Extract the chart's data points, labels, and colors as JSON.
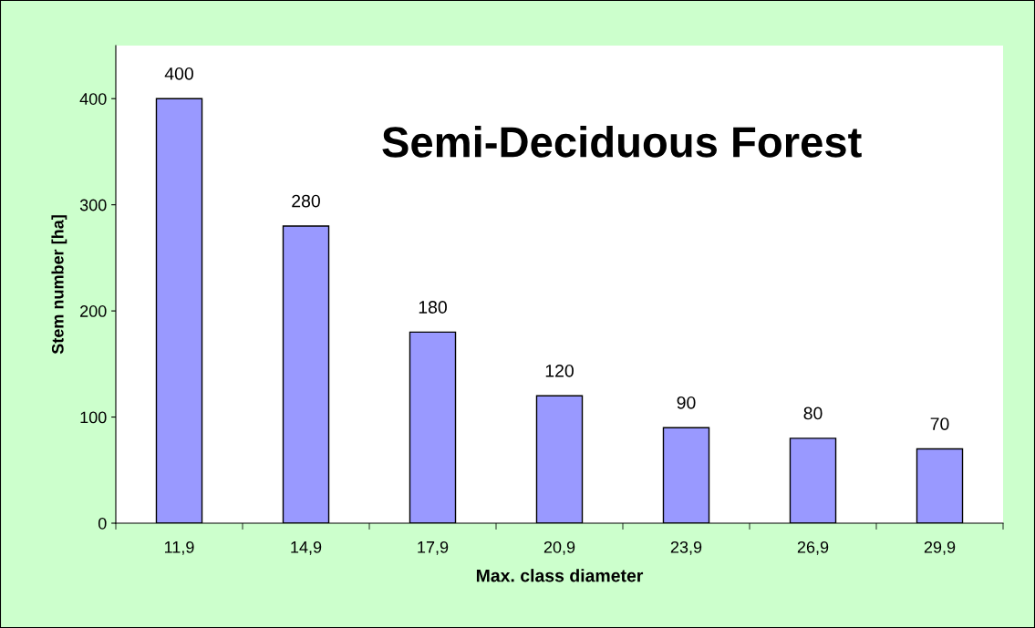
{
  "chart_data": {
    "type": "bar",
    "title": "Semi-Deciduous Forest",
    "xlabel": "Max. class diameter",
    "ylabel": "Stem number [ha]",
    "categories": [
      "11,9",
      "14,9",
      "17,9",
      "20,9",
      "23,9",
      "26,9",
      "29,9"
    ],
    "values": [
      400,
      280,
      180,
      120,
      90,
      80,
      70
    ],
    "color": "#9999ff",
    "ylim": [
      0,
      450
    ],
    "yticks": [
      0,
      100,
      200,
      300,
      400
    ],
    "grid": false,
    "legend": false,
    "data_labels": true
  }
}
